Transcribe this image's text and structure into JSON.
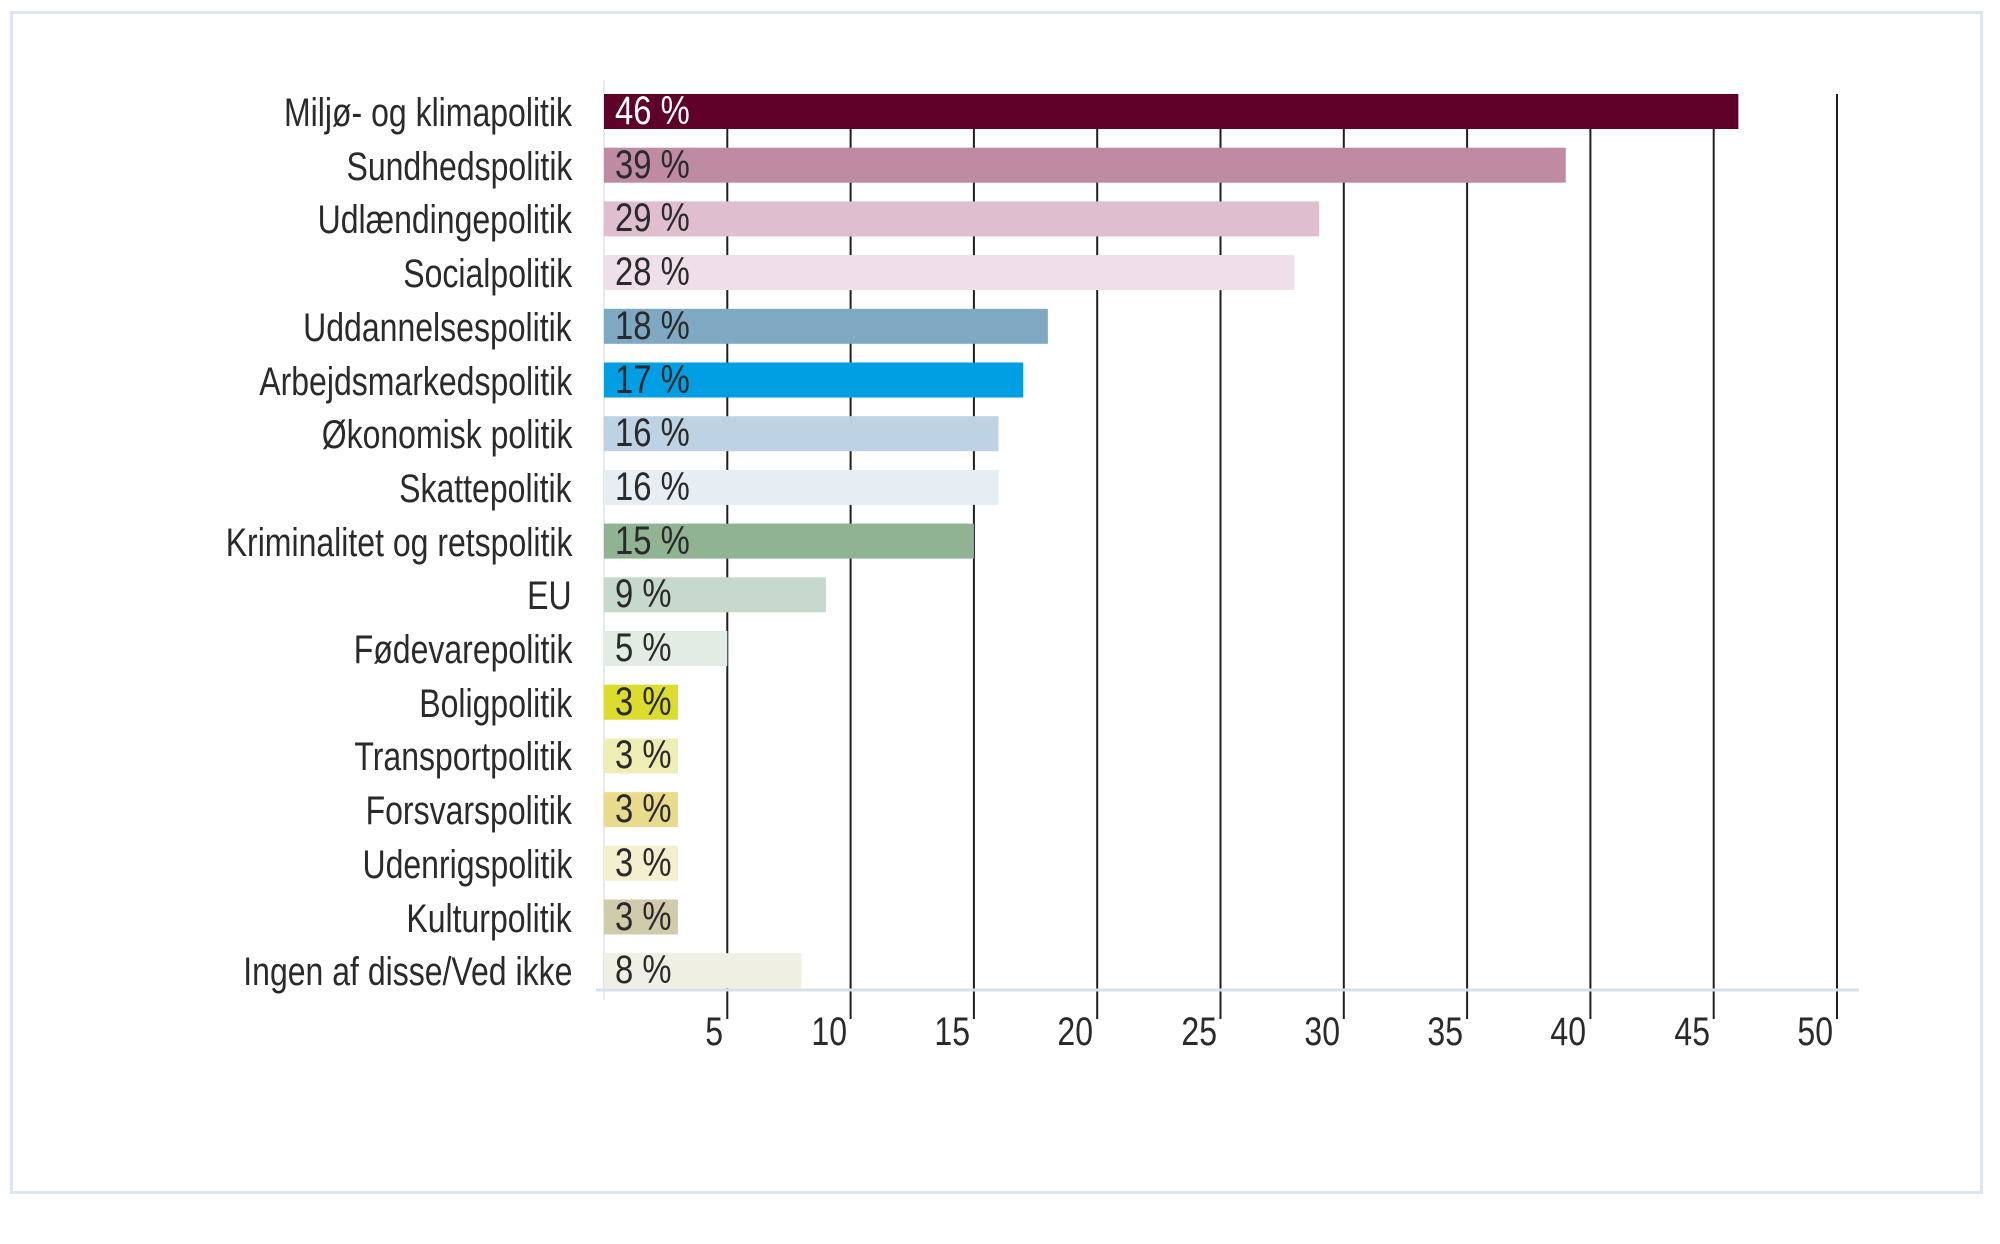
{
  "chart_data": {
    "type": "bar",
    "orientation": "horizontal",
    "categories": [
      "Miljø- og klimapolitik",
      "Sundhedspolitik",
      "Udlændingepolitik",
      "Socialpolitik",
      "Uddannelsespolitik",
      "Arbejdsmarkedspolitik",
      "Økonomisk politik",
      "Skattepolitik",
      "Kriminalitet og retspolitik",
      "EU",
      "Fødevarepolitik",
      "Boligpolitik",
      "Transportpolitik",
      "Forsvarspolitik",
      "Udenrigspolitik",
      "Kulturpolitik",
      "Ingen af disse/Ved ikke"
    ],
    "values": [
      46,
      39,
      29,
      28,
      18,
      17,
      16,
      16,
      15,
      9,
      5,
      3,
      3,
      3,
      3,
      3,
      8
    ],
    "value_labels": [
      "46 %",
      "39 %",
      "29 %",
      "28 %",
      "18 %",
      "17 %",
      "16 %",
      "16 %",
      "15 %",
      "9 %",
      "5 %",
      "3 %",
      "3 %",
      "3 %",
      "3 %",
      "3 %",
      "8 %"
    ],
    "colors": [
      "#5e0028",
      "#bf8ba3",
      "#dfbfcf",
      "#efdfe8",
      "#7fa8c2",
      "#009fe3",
      "#bdd3e3",
      "#e6edf3",
      "#8fb393",
      "#c6d9cc",
      "#e2ebe4",
      "#dcdc2e",
      "#eeeeb4",
      "#e8dc8c",
      "#f3efcf",
      "#cfcbab",
      "#efefe3"
    ],
    "value_label_colors": [
      "#ffffff",
      "#2a2a2a",
      "#2a2a2a",
      "#2a2a2a",
      "#2a2a2a",
      "#2a2a2a",
      "#2a2a2a",
      "#2a2a2a",
      "#2a2a2a",
      "#2a2a2a",
      "#2a2a2a",
      "#2a2a2a",
      "#2a2a2a",
      "#2a2a2a",
      "#2a2a2a",
      "#2a2a2a",
      "#2a2a2a"
    ],
    "xticks": [
      "5",
      "10",
      "15",
      "20",
      "25",
      "30",
      "35",
      "40",
      "45",
      "50"
    ],
    "xlim": [
      0,
      50
    ],
    "grid": true,
    "title": "",
    "xlabel": "",
    "ylabel": ""
  }
}
